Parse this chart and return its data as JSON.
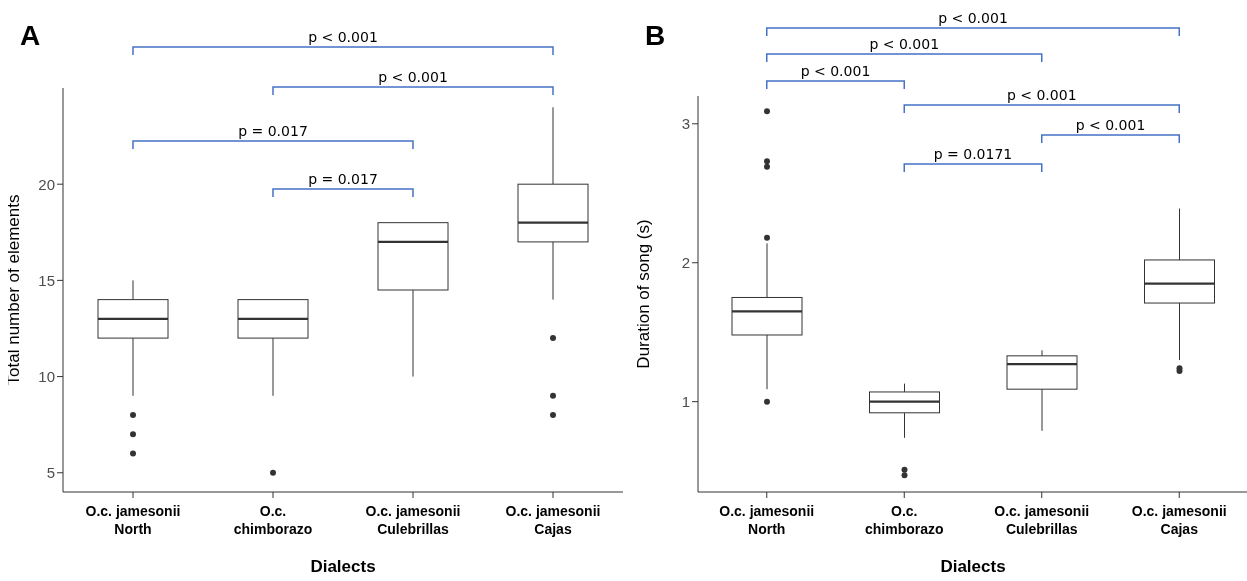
{
  "chart_data": [
    {
      "type": "box",
      "title": "A",
      "xlabel": "Dialects",
      "ylabel": "Total number of elements",
      "categories": [
        "O.c. jamesonii North",
        "O.c. chimborazo",
        "O.c. jamesonii Culebrillas",
        "O.c. jamesonii Cajas"
      ],
      "color": "#333333",
      "ylim": [
        4,
        25
      ],
      "yticks": [
        5,
        10,
        15,
        20
      ],
      "boxes": [
        {
          "low": 9,
          "q1": 12,
          "median": 13,
          "q3": 14,
          "high": 15,
          "outliers": [
            8,
            7,
            6
          ]
        },
        {
          "low": 9,
          "q1": 12,
          "median": 13,
          "q3": 14,
          "high": 14,
          "outliers": [
            5
          ]
        },
        {
          "low": 10,
          "q1": 14.5,
          "median": 17,
          "q3": 18,
          "high": 18
        },
        {
          "low": 14,
          "q1": 17,
          "median": 18,
          "q3": 20,
          "high": 24,
          "outliers": [
            12,
            9,
            8
          ]
        }
      ],
      "annotations": [
        "p < 0.001",
        "p < 0.001",
        "p = 0.017",
        "p = 0.017"
      ]
    },
    {
      "type": "box",
      "title": "B",
      "xlabel": "Dialects",
      "ylabel": "Duration of song (s)",
      "categories": [
        "O.c. jamesonii North",
        "O.c. chimborazo",
        "O.c. jamesonii Culebrillas",
        "O.c. jamesonii Cajas"
      ],
      "color": "#333333",
      "ylim": [
        0.35,
        3.2
      ],
      "yticks": [
        1,
        2,
        3
      ],
      "boxes": [
        {
          "low": 1.09,
          "q1": 1.48,
          "median": 1.65,
          "q3": 1.75,
          "high": 2.14,
          "outliers": [
            1.0,
            2.18,
            2.69,
            2.73,
            3.09
          ]
        },
        {
          "low": 0.74,
          "q1": 0.92,
          "median": 1.0,
          "q3": 1.07,
          "high": 1.13,
          "outliers": [
            0.51,
            0.47
          ]
        },
        {
          "low": 0.79,
          "q1": 1.09,
          "median": 1.27,
          "q3": 1.33,
          "high": 1.37
        },
        {
          "low": 1.3,
          "q1": 1.71,
          "median": 1.85,
          "q3": 2.02,
          "high": 2.39,
          "outliers": [
            1.24,
            1.22
          ]
        }
      ],
      "annotations": [
        "p < 0.001",
        "p < 0.001",
        "p < 0.001",
        "p < 0.001",
        "p < 0.001",
        "p = 0.0171"
      ]
    }
  ]
}
